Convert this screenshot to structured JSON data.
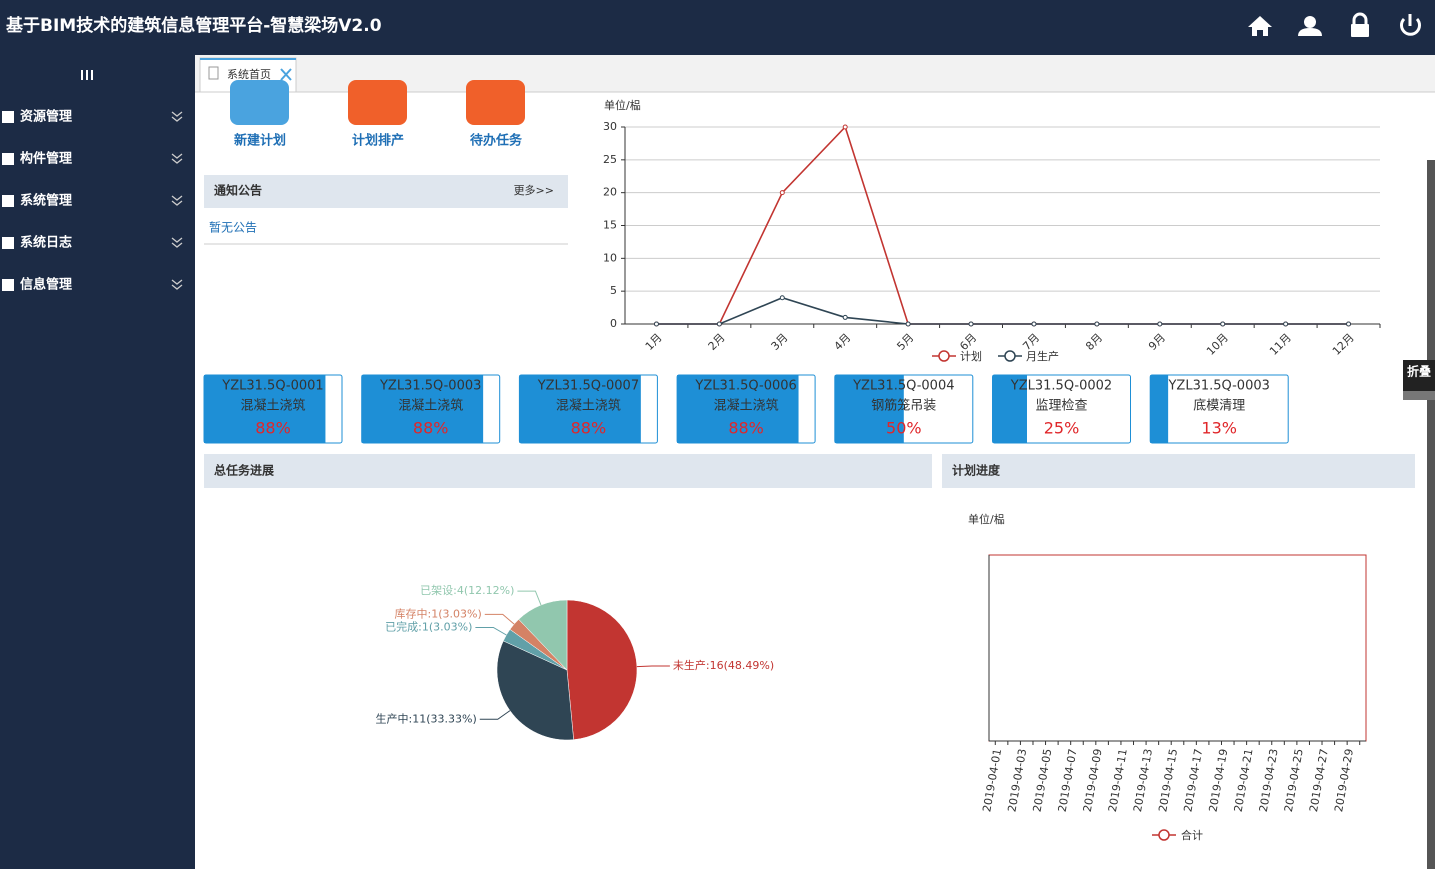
{
  "header": {
    "title": "基于BIM技术的建筑信息管理平台-智慧梁场V2.0"
  },
  "sidebar": {
    "menu": [
      "资源管理",
      "构件管理",
      "系统管理",
      "系统日志",
      "信息管理"
    ],
    "collapse": "折叠"
  },
  "tab": {
    "title": "系统首页"
  },
  "quick_actions": [
    {
      "label": "新建计划",
      "color": "#4aa3df"
    },
    {
      "label": "计划排产",
      "color": "#f0602a"
    },
    {
      "label": "待办任务",
      "color": "#f0602a"
    }
  ],
  "notice": {
    "title": "通知公告",
    "more": "更多>>",
    "empty": "暂无公告"
  },
  "production_chart": {
    "type": "line",
    "unit": "单位/榀",
    "categories": [
      "1月",
      "2月",
      "3月",
      "4月",
      "5月",
      "6月",
      "7月",
      "8月",
      "9月",
      "10月",
      "11月",
      "12月"
    ],
    "series": [
      {
        "name": "计划",
        "color": "#c23531",
        "values": [
          0,
          0,
          20,
          30,
          0,
          0,
          0,
          0,
          0,
          0,
          0,
          0
        ]
      },
      {
        "name": "月生产",
        "color": "#2f4554",
        "values": [
          0,
          0,
          4,
          1,
          0,
          0,
          0,
          0,
          0,
          0,
          0,
          0
        ]
      }
    ],
    "ylim": [
      0,
      30
    ],
    "yticks": [
      0,
      5,
      10,
      15,
      20,
      25,
      30
    ],
    "grid": true
  },
  "task_cards": [
    {
      "code": "YZL31.5Q-0001",
      "name": "混凝土浇筑",
      "value": 88,
      "label": "88%"
    },
    {
      "code": "YZL31.5Q-0003",
      "name": "混凝土浇筑",
      "value": 88,
      "label": "88%"
    },
    {
      "code": "YZL31.5Q-0007",
      "name": "混凝土浇筑",
      "value": 88,
      "label": "88%"
    },
    {
      "code": "YZL31.5Q-0006",
      "name": "混凝土浇筑",
      "value": 88,
      "label": "88%"
    },
    {
      "code": "YZL31.5Q-0004",
      "name": "钢筋笼吊装",
      "value": 50,
      "label": "50%"
    },
    {
      "code": "YZL31.5Q-0002",
      "name": "监理检查",
      "value": 25,
      "label": "25%"
    },
    {
      "code": "YZL31.5Q-0003",
      "name": "底模清理",
      "value": 13,
      "label": "13%"
    }
  ],
  "panels": {
    "total": "总任务进展",
    "plan": "计划进度"
  },
  "task_pie": {
    "type": "pie",
    "categories": [
      "未生产",
      "生产中",
      "已完成",
      "库存中",
      "已架设"
    ],
    "values": [
      16,
      11,
      1,
      1,
      4
    ],
    "value_labels": [
      "未生产:16(48.49%)",
      "生产中:11(33.33%)",
      "已完成:1(3.03%)",
      "库存中:1(3.03%)",
      "已架设:4(12.12%)"
    ],
    "colors": [
      "#c23531",
      "#2f4554",
      "#61a0a8",
      "#d48265",
      "#91c7ae"
    ]
  },
  "plan_chart": {
    "type": "line",
    "unit": "单位/榀",
    "categories": [
      "2019-04-01",
      null,
      "2019-04-03",
      null,
      "2019-04-05",
      null,
      "2019-04-07",
      null,
      "2019-04-09",
      null,
      "2019-04-11",
      null,
      "2019-04-13",
      null,
      "2019-04-15",
      null,
      "2019-04-17",
      null,
      "2019-04-19",
      null,
      "2019-04-21",
      null,
      "2019-04-23",
      null,
      "2019-04-25",
      null,
      "2019-04-27",
      null,
      "2019-04-29",
      null
    ],
    "series": [
      {
        "name": "合计",
        "color": "#c23531"
      }
    ]
  }
}
